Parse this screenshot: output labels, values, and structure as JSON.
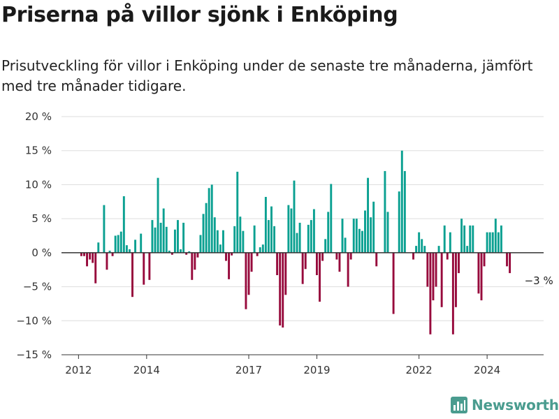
{
  "title": "Priserna på villor sjönk i Enköping",
  "subtitle": "Prisutveckling för villor i Enköping under de senaste tre månaderna, jämfört med tre månader tidigare.",
  "brand": {
    "name": "Newsworthy"
  },
  "colors": {
    "positive": "#0aa091",
    "negative": "#970a3c",
    "grid": "#dddddd",
    "zero": "#333333",
    "brand": "#4a9c8f"
  },
  "chart_data": {
    "type": "bar",
    "title": "Priserna på villor sjönk i Enköping",
    "subtitle": "Prisutveckling för villor i Enköping under de senaste tre månaderna, jämfört med tre månader tidigare.",
    "xlabel": "",
    "ylabel": "",
    "ylim": [
      -15,
      20
    ],
    "y_ticks": [
      20,
      15,
      10,
      5,
      0,
      -5,
      -10,
      -15
    ],
    "y_tick_labels": [
      "20 %",
      "15 %",
      "10 %",
      "5 %",
      "0 %",
      "−5 %",
      "−10 %",
      "−15 %"
    ],
    "x_ticks": [
      "2012",
      "2014",
      "2017",
      "2019",
      "2022",
      "2024"
    ],
    "x_tick_years": [
      2012,
      2014,
      2017,
      2019,
      2022,
      2024
    ],
    "grid": true,
    "end_label": "−3 %",
    "series": [
      {
        "start": "2012-01",
        "frequency": "monthly",
        "values": [
          0,
          -0.5,
          -0.5,
          -2,
          -1,
          -1.5,
          -4.5,
          1.5,
          0,
          7,
          -2.5,
          0.3,
          -0.5,
          2.5,
          2.6,
          3.1,
          8.3,
          1.1,
          0.5,
          -6.5,
          1.9,
          0,
          2.8,
          -4.7,
          0,
          -4,
          4.8,
          3.7,
          11,
          4.4,
          6.5,
          3.8,
          0.3,
          -0.3,
          3.4,
          4.8,
          0.5,
          4.4,
          -0.3,
          0.2,
          -4,
          -2.5,
          -0.7,
          2.6,
          5.7,
          7.3,
          9.5,
          10,
          5.2,
          3.3,
          1.2,
          3.3,
          -1.2,
          -3.9,
          -0.4,
          3.9,
          11.9,
          5.3,
          3.2,
          -8.3,
          -6.2,
          -2.8,
          4,
          -0.5,
          0.8,
          1.2,
          8.2,
          4.8,
          6.8,
          3.9,
          -3.3,
          -10.7,
          -11,
          -6.2,
          7,
          6.5,
          10.6,
          2.9,
          4.4,
          -4.6,
          -2.4,
          4.1,
          4.8,
          6.4,
          -3.3,
          -7.2,
          -1.2,
          2,
          6,
          10.1,
          0,
          -1,
          -2.8,
          5,
          2.2,
          -5,
          -1,
          5,
          5,
          3.5,
          3.2,
          6.2,
          11,
          5.2,
          7.5,
          -2,
          0,
          0,
          12,
          6,
          0,
          -9,
          0,
          9,
          15,
          12,
          0,
          0,
          -1,
          1,
          3,
          2,
          1,
          -5,
          -12,
          -7,
          -5,
          1,
          -8,
          4,
          -1,
          3,
          -12,
          -8,
          -3,
          5,
          4,
          1,
          4,
          4,
          0,
          -6,
          -7,
          -2,
          3,
          3,
          3,
          5,
          3,
          4,
          0,
          -2,
          -3
        ]
      }
    ]
  }
}
